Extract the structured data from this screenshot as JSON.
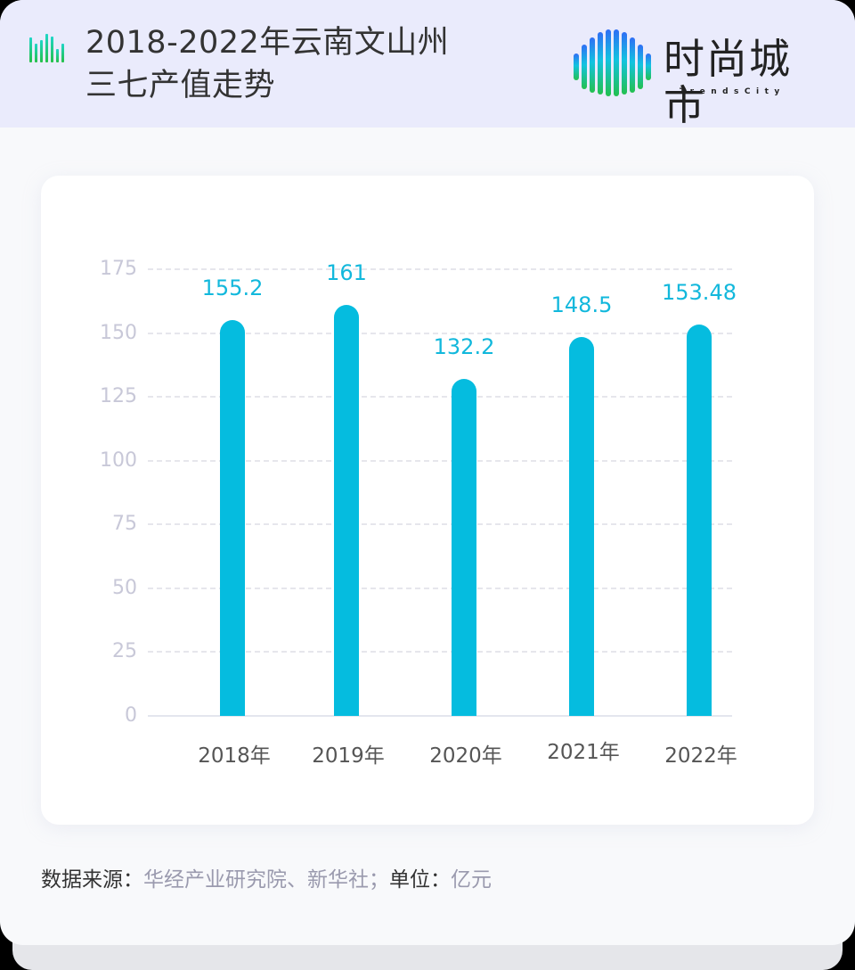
{
  "header": {
    "title_line1": "2018-2022年云南文山州",
    "title_line2": "三七产值走势",
    "icon": "bar-chart-icon",
    "logo": {
      "cn": "时尚城市",
      "en": "TrendsCity",
      "icon": "striped-circle-logo-icon"
    }
  },
  "footer": {
    "source_label": "数据来源：",
    "source_value": "华经产业研究院、新华社；",
    "unit_label": "单位：",
    "unit_value": "亿元"
  },
  "colors": {
    "bar": "#05bcdf",
    "value_label": "#12b8dc",
    "axis_tick": "#c8c8d8",
    "header_bg": "#eaebfc",
    "page_bg": "#f8f9fb"
  },
  "chart_data": {
    "type": "bar",
    "title": "2018-2022年云南文山州三七产值走势",
    "categories": [
      "2018年",
      "2019年",
      "2020年",
      "2021年",
      "2022年"
    ],
    "values": [
      155.2,
      161,
      132.2,
      148.5,
      153.48
    ],
    "value_labels": [
      "155.2",
      "161",
      "132.2",
      "148.5",
      "153.48"
    ],
    "xlabel": "",
    "ylabel": "",
    "unit": "亿元",
    "ylim": [
      0,
      175
    ],
    "yticks": [
      0,
      25,
      50,
      75,
      100,
      125,
      150,
      175
    ],
    "ytick_labels": [
      "0",
      "25",
      "50",
      "75",
      "100",
      "125",
      "150",
      "175"
    ],
    "grid": true,
    "legend": null
  }
}
